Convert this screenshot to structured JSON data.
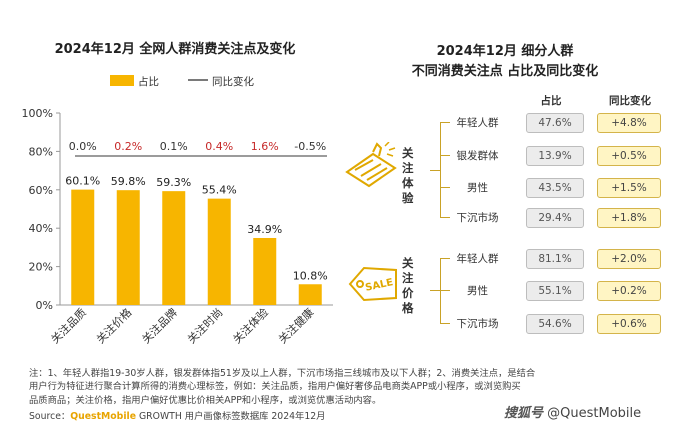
{
  "chart_data": {
    "type": "bar",
    "title": "2024年12月 全网人群消费关注点及变化",
    "legend": [
      "占比",
      "同比变化"
    ],
    "categories": [
      "关注品质",
      "关注价格",
      "关注品牌",
      "关注时尚",
      "关注体验",
      "关注健康"
    ],
    "values": [
      60.1,
      59.8,
      59.3,
      55.4,
      34.9,
      10.8
    ],
    "value_labels": [
      "60.1%",
      "59.8%",
      "59.3%",
      "55.4%",
      "34.9%",
      "10.8%"
    ],
    "yoy": [
      0.0,
      0.2,
      0.1,
      0.4,
      1.6,
      -0.5
    ],
    "yoy_labels": [
      "0.0%",
      "0.2%",
      "0.1%",
      "0.4%",
      "1.6%",
      "-0.5%"
    ],
    "yoy_colors": [
      "#333333",
      "#c62828",
      "#333333",
      "#c62828",
      "#c62828",
      "#333333"
    ],
    "ylim": [
      0,
      100
    ],
    "yticks": [
      "0%",
      "20%",
      "40%",
      "60%",
      "80%",
      "100%"
    ],
    "bar_color": "#f7b500",
    "line_color": "#7a7a7a"
  },
  "right_panel": {
    "title_line1": "2024年12月 细分人群",
    "title_line2": "不同消费关注点 占比及同比变化",
    "col_share": "占比",
    "col_yoy": "同比变化",
    "groups": [
      {
        "label": "关注体验",
        "icon": "thumbs-up-icon",
        "rows": [
          {
            "label": "年轻人群",
            "share": "47.6%",
            "yoy": "+4.8%"
          },
          {
            "label": "银发群体",
            "share": "13.9%",
            "yoy": "+0.5%"
          },
          {
            "label": "男性",
            "share": "43.5%",
            "yoy": "+1.5%"
          },
          {
            "label": "下沉市场",
            "share": "29.4%",
            "yoy": "+1.8%"
          }
        ]
      },
      {
        "label": "关注价格",
        "icon": "sale-tag-icon",
        "icon_text": "SALE",
        "rows": [
          {
            "label": "年轻人群",
            "share": "81.1%",
            "yoy": "+2.0%"
          },
          {
            "label": "男性",
            "share": "55.1%",
            "yoy": "+0.2%"
          },
          {
            "label": "下沉市场",
            "share": "54.6%",
            "yoy": "+0.6%"
          }
        ]
      }
    ]
  },
  "notes": {
    "line1": "注：1、年轻人群指19-30岁人群，银发群体指51岁及以上人群，下沉市场指三线城市及以下人群；2、消费关注点，是结合",
    "line2": "用户行为特征进行聚合计算所得的消费心理标签，例如：关注品质，指用户偏好奢侈品电商类APP或小程序，或浏览购买",
    "line3": "品质商品；关注价格，指用户偏好优惠比价相关APP和小程序，或浏览优惠活动内容。",
    "source_prefix": "Source：",
    "source_brand": "QuestMobile",
    "source_rest": " GROWTH 用户画像标签数据库 2024年12月"
  },
  "watermark": {
    "logo": "搜狐号",
    "handle": "@QuestMobile"
  }
}
